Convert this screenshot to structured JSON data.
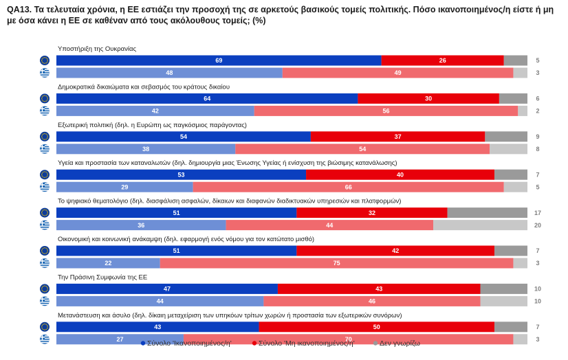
{
  "title": "QA13. Τα τελευταία χρόνια, η ΕΕ εστιάζει την προσοχή της σε αρκετούς βασικούς τομείς πολιτικής. Πόσο ικανοποιημένος/η είστε ή μη με όσα κάνει η ΕΕ σε καθέναν από τους ακόλουθους τομείς; (%)",
  "chart_data": {
    "type": "bar",
    "orientation": "horizontal",
    "stacked": true,
    "rows": [
      "EU",
      "EL"
    ],
    "row_flags": {
      "EU": "eu-flag-icon",
      "EL": "greece-flag-icon"
    },
    "categories": [
      "Υποστήριξη της Ουκρανίας",
      "Δημοκρατικά δικαιώματα και σεβασμός του κράτους δικαίου",
      "Εξωτερική πολιτική (δηλ. η Ευρώπη ως παγκόσμιος παράγοντας)",
      "Υγεία και προστασία των καταναλωτών (δηλ. δημιουργία μιας Ένωσης Υγείας ή ενίσχυση της βιώσιμης κατανάλωσης)",
      "Το ψηφιακό θεματολόγιο (δηλ. διασφάλιση ασφαλών, δίκαιων και διαφανών διαδικτυακών υπηρεσιών και πλατφορμών)",
      "Οικονομική και κοινωνική ανάκαμψη (δηλ. εφαρμογή ενός νόμου για τον κατώτατο μισθό)",
      "Την Πράσινη Συμφωνία της ΕΕ",
      "Μετανάστευση και άσυλο (δηλ. δίκαιη μεταχείριση των υπηκόων τρίτων χωρών ή προστασία των εξωτερικών συνόρων)"
    ],
    "series": [
      {
        "name": "Σύνολο 'Ικανοποιημένος/η'",
        "colors": {
          "EU": "#0b3fbf",
          "EL": "#6e8fd6"
        },
        "values": {
          "EU": [
            69,
            64,
            54,
            53,
            51,
            51,
            47,
            43
          ],
          "EL": [
            48,
            42,
            38,
            29,
            36,
            22,
            44,
            27
          ]
        }
      },
      {
        "name": "Σύνολο 'Μη ικανοποιημένος/η'",
        "colors": {
          "EU": "#e8000a",
          "EL": "#f06a6e"
        },
        "values": {
          "EU": [
            26,
            30,
            37,
            40,
            32,
            42,
            43,
            50
          ],
          "EL": [
            49,
            56,
            54,
            66,
            44,
            75,
            46,
            70
          ]
        }
      },
      {
        "name": "Δεν γνωρίζω",
        "colors": {
          "EU": "#9a9a9a",
          "EL": "#c8c8c8"
        },
        "values": {
          "EU": [
            5,
            6,
            9,
            7,
            17,
            7,
            10,
            7
          ],
          "EL": [
            3,
            2,
            8,
            5,
            20,
            3,
            10,
            3
          ]
        }
      }
    ],
    "xlim": [
      0,
      100
    ],
    "legend_position": "bottom-right"
  }
}
